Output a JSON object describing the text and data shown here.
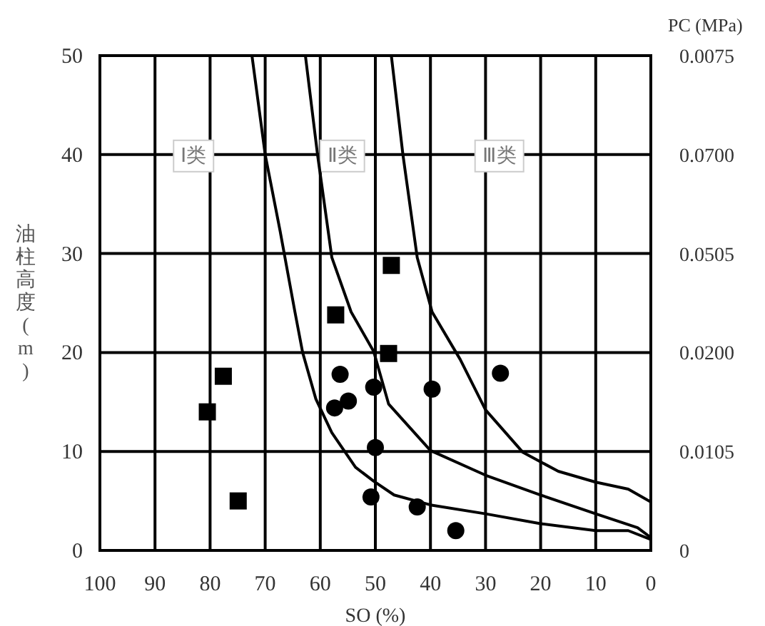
{
  "chart_data": {
    "type": "scatter",
    "xlabel": "SO (%)",
    "ylabel": "油柱高度 (m)",
    "y2label": "PC (MPa)",
    "xlim": [
      100,
      0
    ],
    "ylim": [
      0,
      50
    ],
    "xticks": [
      100,
      90,
      80,
      70,
      60,
      50,
      40,
      30,
      20,
      10,
      0
    ],
    "yticks": [
      0,
      10,
      20,
      30,
      40,
      50
    ],
    "y2_categories": [
      "0.0075",
      "0.0700",
      "0.0505",
      "0.0200",
      "0.0105",
      "0"
    ],
    "grid": true,
    "annotations": [
      {
        "text": "Ⅰ类",
        "x": 83,
        "y": 40
      },
      {
        "text": "Ⅱ类",
        "x": 56,
        "y": 40
      },
      {
        "text": "Ⅲ类",
        "x": 27.5,
        "y": 40
      }
    ],
    "series": [
      {
        "type": "line",
        "color": "#000000",
        "marker": "none",
        "line_style": "solid",
        "x": [
          72.4,
          70,
          67.3,
          64.6,
          63.2,
          60.8,
          57.9,
          53.6,
          50.3,
          46.6,
          40,
          30,
          20,
          10,
          4.1,
          0
        ],
        "values": [
          50,
          40,
          32.3,
          24.1,
          20,
          15.3,
          11.9,
          8.4,
          7,
          5.6,
          4.6,
          3.7,
          2.7,
          2,
          2,
          1.1
        ]
      },
      {
        "type": "line",
        "color": "#000000",
        "marker": "none",
        "line_style": "solid",
        "x": [
          62.7,
          60.5,
          57.9,
          54.4,
          50.3,
          47.6,
          40,
          30,
          20,
          10,
          2.4,
          0
        ],
        "values": [
          50,
          40,
          29.6,
          24.1,
          20.1,
          14.8,
          10.1,
          7.6,
          5.6,
          3.7,
          2.3,
          1.3
        ]
      },
      {
        "type": "line",
        "color": "#000000",
        "marker": "none",
        "line_style": "solid",
        "x": [
          47.1,
          45,
          42.4,
          39.7,
          34.6,
          30,
          23.2,
          16.8,
          10,
          4.1,
          0
        ],
        "values": [
          50,
          40,
          29.6,
          24.1,
          19.3,
          14.2,
          9.9,
          8,
          6.9,
          6.2,
          4.9
        ]
      },
      {
        "type": "scatter",
        "color": "#000000",
        "marker": "square",
        "x": [
          80.5,
          77.6,
          74.9,
          57.2,
          47.6,
          47.1
        ],
        "values": [
          14,
          17.6,
          5,
          23.8,
          19.9,
          28.8
        ]
      },
      {
        "type": "scatter",
        "color": "#000000",
        "marker": "circle",
        "x": [
          56.4,
          57.4,
          54.9,
          50.3,
          50,
          50.8,
          39.7,
          27.3,
          42.4,
          35.4
        ],
        "values": [
          17.8,
          14.4,
          15.1,
          16.5,
          10.4,
          5.4,
          16.3,
          17.9,
          4.4,
          2
        ]
      }
    ]
  }
}
